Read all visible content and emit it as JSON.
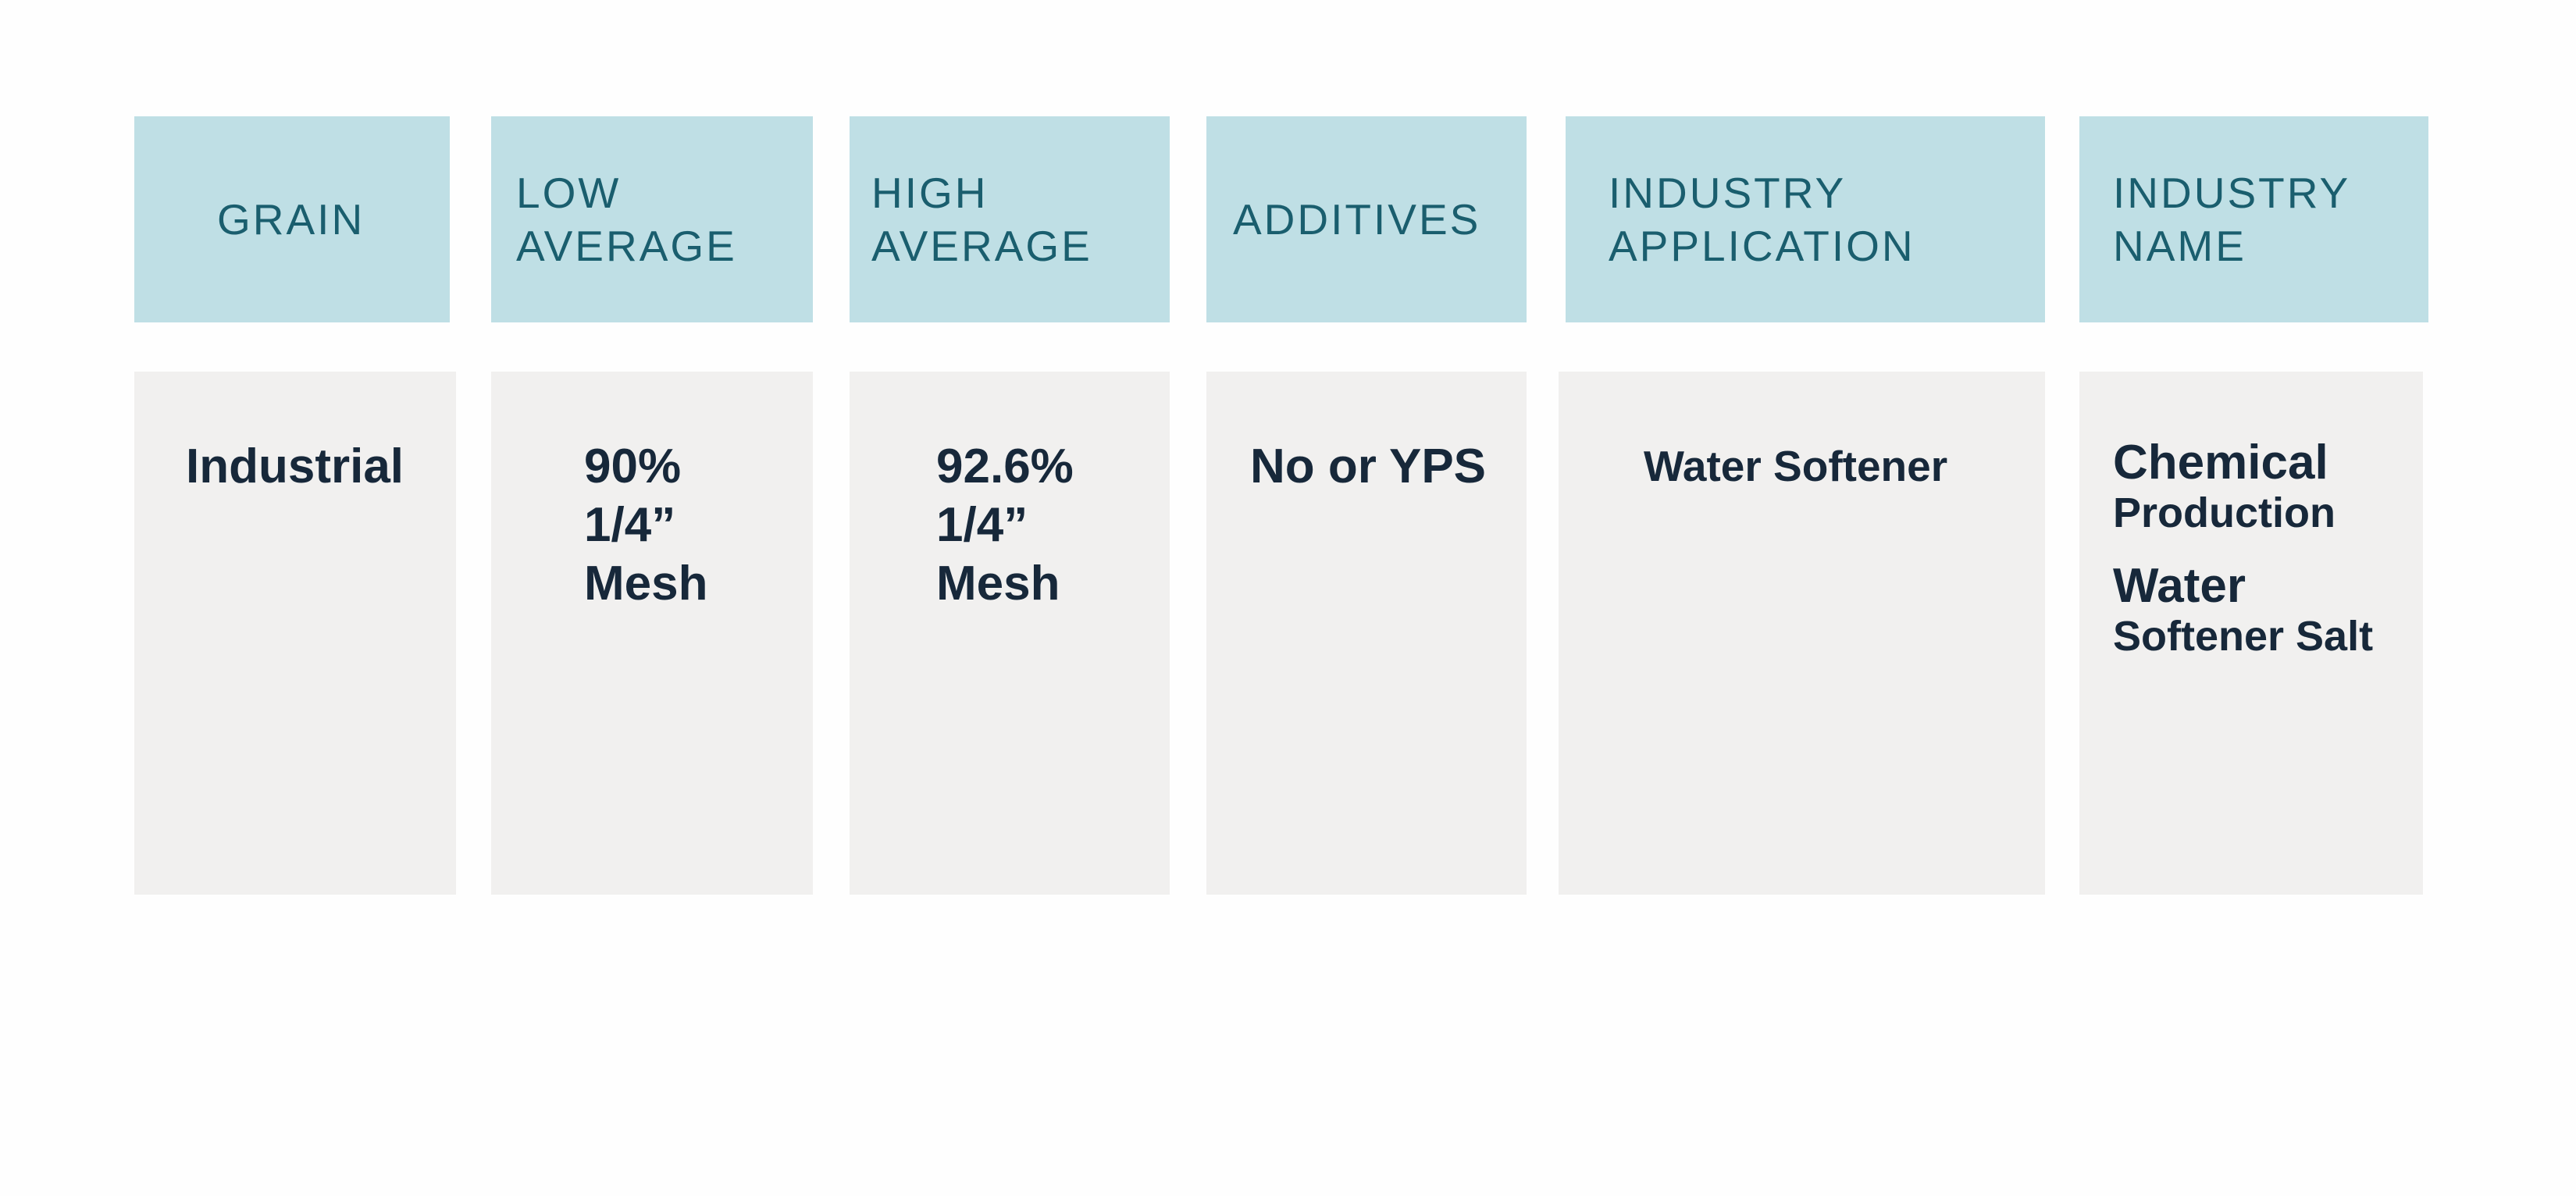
{
  "table": {
    "header": [
      [
        "GRAIN"
      ],
      [
        "LOW",
        "AVERAGE"
      ],
      [
        "HIGH",
        "AVERAGE"
      ],
      [
        "ADDITIVES"
      ],
      [
        "INDUSTRY",
        "APPLICATION"
      ],
      [
        "INDUSTRY",
        "NAME"
      ]
    ],
    "rows": [
      [
        [
          "Industrial"
        ],
        [
          "90%",
          "1/4”",
          "Mesh"
        ],
        [
          "92.6%",
          "1/4”",
          "Mesh"
        ],
        [
          "No or YPS"
        ],
        [
          "Water Softener"
        ],
        [
          [
            "Chemical",
            "Production"
          ],
          [
            "Water",
            "Softener Salt"
          ]
        ]
      ]
    ]
  }
}
